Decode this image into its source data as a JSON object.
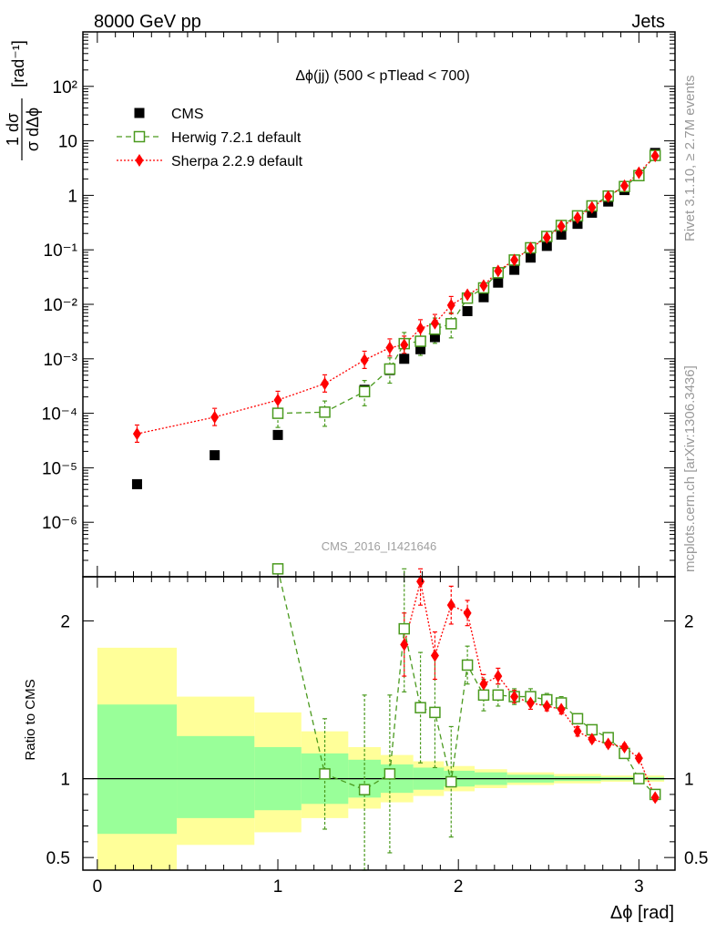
{
  "header": {
    "left": "8000 GeV pp",
    "right": "Jets"
  },
  "side": {
    "rivet": "Rivet 3.1.10, ≥ 2.7M events",
    "mcplots": "mcplots.cern.ch [arXiv:1306.3436]"
  },
  "title": "Δϕ(jj) (500 < pTlead <  700)",
  "watermark": "CMS_2016_I1421646",
  "ylabel_main": "1/σ dσ/dΔϕ [rad⁻¹]",
  "ylabel_ratio": "Ratio to CMS",
  "xlabel": "Δϕ [rad]",
  "legend": [
    {
      "label": "CMS",
      "color": "#000000",
      "marker": "square-filled"
    },
    {
      "label": "Herwig 7.2.1 default",
      "color": "#4a9a1e",
      "marker": "square-open",
      "dash": "dashed"
    },
    {
      "label": "Sherpa 2.2.9 default",
      "color": "#ff0000",
      "marker": "diamond",
      "dash": "dotted"
    }
  ],
  "colors": {
    "band_inner": "#99ff99",
    "band_outer": "#ffff99",
    "herwig": "#4a9a1e",
    "sherpa": "#ff0000",
    "data": "#000000"
  },
  "chart_data": [
    {
      "type": "scatter",
      "panel": "main",
      "log_y": true,
      "xlim": [
        -0.08,
        3.2
      ],
      "ylim": [
        1e-07,
        1000
      ],
      "x_ticks": [
        "0",
        "1",
        "2",
        "3"
      ],
      "y_ticks": [
        "10⁻⁶",
        "10⁻⁵",
        "10⁻⁴",
        "10⁻³",
        "10⁻²",
        "10⁻¹",
        "1",
        "10",
        "10²"
      ],
      "series": [
        {
          "name": "CMS",
          "x": [
            0.22,
            0.65,
            1.0,
            1.26,
            1.48,
            1.62,
            1.7,
            1.79,
            1.87,
            1.96,
            2.05,
            2.14,
            2.22,
            2.31,
            2.4,
            2.49,
            2.57,
            2.66,
            2.74,
            2.83,
            2.92,
            3.0,
            3.09
          ],
          "y": [
            5e-06,
            1.7e-05,
            4e-05,
            0.000105,
            0.00027,
            0.00062,
            0.001,
            0.0015,
            0.0025,
            0.0045,
            0.0075,
            0.0135,
            0.025,
            0.043,
            0.072,
            0.118,
            0.19,
            0.3,
            0.48,
            0.77,
            1.25,
            2.3,
            6.0
          ]
        },
        {
          "name": "Herwig 7.2.1 default",
          "x": [
            1.0,
            1.26,
            1.48,
            1.62,
            1.7,
            1.79,
            1.87,
            1.96,
            2.05,
            2.14,
            2.22,
            2.31,
            2.4,
            2.49,
            2.57,
            2.66,
            2.74,
            2.83,
            2.92,
            3.0,
            3.09
          ],
          "y": [
            0.0001,
            0.000105,
            0.00025,
            0.00065,
            0.0019,
            0.0021,
            0.0035,
            0.0044,
            0.013,
            0.02,
            0.038,
            0.065,
            0.109,
            0.176,
            0.28,
            0.42,
            0.64,
            0.97,
            1.45,
            2.3,
            5.4
          ]
        },
        {
          "name": "Sherpa 2.2.9 default",
          "x": [
            0.22,
            0.65,
            1.0,
            1.26,
            1.48,
            1.62,
            1.7,
            1.79,
            1.87,
            1.96,
            2.05,
            2.14,
            2.22,
            2.31,
            2.4,
            2.49,
            2.57,
            2.66,
            2.74,
            2.83,
            2.92,
            3.0,
            3.09
          ],
          "y": [
            4.2e-05,
            8.5e-05,
            0.000175,
            0.00035,
            0.00095,
            0.0016,
            0.0018,
            0.0036,
            0.0045,
            0.0096,
            0.015,
            0.022,
            0.041,
            0.065,
            0.108,
            0.168,
            0.27,
            0.39,
            0.6,
            0.95,
            1.5,
            2.6,
            5.3
          ]
        }
      ]
    },
    {
      "type": "scatter",
      "panel": "ratio",
      "ylabel": "Ratio to CMS",
      "xlabel": "Δϕ [rad]",
      "xlim": [
        -0.08,
        3.2
      ],
      "ylim": [
        0.42,
        2.28
      ],
      "y_ticks": [
        "0.5",
        "1",
        "2"
      ],
      "bins": [
        {
          "x0": 0.0,
          "x1": 0.44,
          "in_lo": 0.65,
          "in_hi": 1.47,
          "out_lo": 0.4,
          "out_hi": 1.83
        },
        {
          "x0": 0.44,
          "x1": 0.87,
          "in_lo": 0.75,
          "in_hi": 1.27,
          "out_lo": 0.58,
          "out_hi": 1.52
        },
        {
          "x0": 0.87,
          "x1": 1.13,
          "in_lo": 0.8,
          "in_hi": 1.2,
          "out_lo": 0.66,
          "out_hi": 1.42
        },
        {
          "x0": 1.13,
          "x1": 1.39,
          "in_lo": 0.84,
          "in_hi": 1.16,
          "out_lo": 0.75,
          "out_hi": 1.3
        },
        {
          "x0": 1.39,
          "x1": 1.57,
          "in_lo": 0.88,
          "in_hi": 1.12,
          "out_lo": 0.81,
          "out_hi": 1.2
        },
        {
          "x0": 1.57,
          "x1": 1.75,
          "in_lo": 0.91,
          "in_hi": 1.09,
          "out_lo": 0.85,
          "out_hi": 1.15
        },
        {
          "x0": 1.75,
          "x1": 1.92,
          "in_lo": 0.93,
          "in_hi": 1.07,
          "out_lo": 0.89,
          "out_hi": 1.11
        },
        {
          "x0": 1.92,
          "x1": 2.09,
          "in_lo": 0.95,
          "in_hi": 1.05,
          "out_lo": 0.92,
          "out_hi": 1.08
        },
        {
          "x0": 2.09,
          "x1": 2.27,
          "in_lo": 0.96,
          "in_hi": 1.04,
          "out_lo": 0.94,
          "out_hi": 1.06
        },
        {
          "x0": 2.27,
          "x1": 2.53,
          "in_lo": 0.975,
          "in_hi": 1.025,
          "out_lo": 0.96,
          "out_hi": 1.04
        },
        {
          "x0": 2.53,
          "x1": 2.79,
          "in_lo": 0.985,
          "in_hi": 1.015,
          "out_lo": 0.97,
          "out_hi": 1.03
        },
        {
          "x0": 2.79,
          "x1": 3.14,
          "in_lo": 0.99,
          "in_hi": 1.01,
          "out_lo": 0.98,
          "out_hi": 1.02
        }
      ],
      "series": [
        {
          "name": "Herwig 7.2.1 default",
          "x": [
            1.0,
            1.26,
            1.48,
            1.62,
            1.7,
            1.79,
            1.87,
            1.96,
            2.05,
            2.14,
            2.22,
            2.31,
            2.4,
            2.49,
            2.57,
            2.66,
            2.74,
            2.83,
            2.92,
            3.0,
            3.09
          ],
          "y": [
            2.35,
            1.03,
            0.93,
            1.03,
            1.95,
            1.45,
            1.42,
            0.98,
            1.72,
            1.53,
            1.53,
            1.52,
            1.52,
            1.5,
            1.48,
            1.38,
            1.31,
            1.26,
            1.16,
            1.0,
            0.9
          ],
          "err": [
            0.0,
            0.35,
            0.6,
            0.5,
            0.4,
            0.35,
            0.35,
            0.35,
            0.12,
            0.1,
            0.07,
            0.05,
            0.05,
            0.04,
            0.04,
            0.03,
            0.03,
            0.03,
            0.03,
            0.02,
            0.02
          ]
        },
        {
          "name": "Sherpa 2.2.9 default",
          "x": [
            1.7,
            1.79,
            1.87,
            1.96,
            2.05,
            2.14,
            2.22,
            2.31,
            2.4,
            2.49,
            2.57,
            2.66,
            2.74,
            2.83,
            2.92,
            3.0,
            3.09
          ],
          "y": [
            1.85,
            2.25,
            1.78,
            2.1,
            2.05,
            1.6,
            1.65,
            1.52,
            1.48,
            1.46,
            1.44,
            1.3,
            1.25,
            1.22,
            1.2,
            1.13,
            0.88
          ],
          "err": [
            0.2,
            0.15,
            0.15,
            0.12,
            0.08,
            0.06,
            0.05,
            0.04,
            0.04,
            0.03,
            0.03,
            0.03,
            0.02,
            0.02,
            0.02,
            0.02,
            0.02
          ]
        }
      ]
    }
  ]
}
